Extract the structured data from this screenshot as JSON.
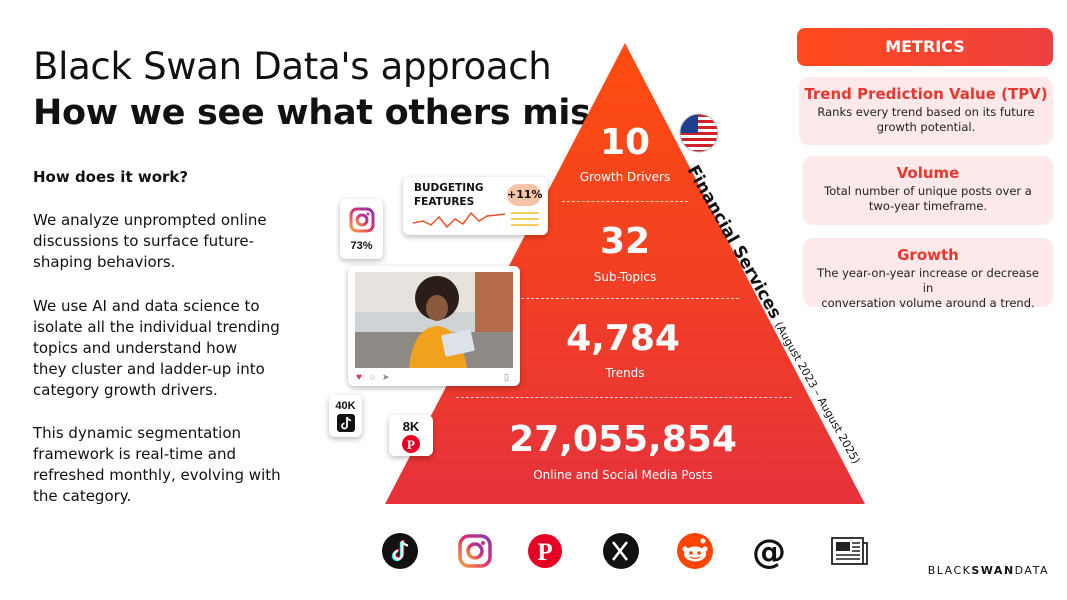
{
  "title": "Black Swan Data's approach",
  "subtitle": "How we see what others miss",
  "question": "How does it work?",
  "paragraphs": [
    [
      "We analyze unprompted online",
      "discussions to surface future-",
      "shaping behaviors."
    ],
    [
      "We use AI and data science to",
      "isolate all the individual trending",
      "topics and understand how",
      "they cluster and ladder-up into",
      "category growth drivers."
    ],
    [
      "This dynamic segmentation",
      "framework is real-time and",
      "refreshed monthly, evolving with",
      "the category."
    ]
  ],
  "pyramid": [
    {
      "value": "10",
      "label": "Growth Drivers"
    },
    {
      "value": "32",
      "label": "Sub-Topics"
    },
    {
      "value": "4,784",
      "label": "Trends"
    },
    {
      "value": "27,055,854",
      "label": "Online and Social Media Posts"
    }
  ],
  "category": {
    "name": "Financial Services",
    "period": "(August 2023 – August 2025)"
  },
  "metrics": {
    "heading": "METRICS",
    "items": [
      {
        "title": "Trend Prediction Value (TPV)",
        "desc_lines": [
          "Ranks every trend based on its future",
          "growth potential."
        ]
      },
      {
        "title": "Volume",
        "desc_lines": [
          "Total number of unique posts over a",
          "two-year timeframe."
        ]
      },
      {
        "title": "Growth",
        "desc_lines": [
          "The year-on-year increase or decrease in",
          "conversation volume around a trend."
        ]
      }
    ]
  },
  "budgeting_card": {
    "title_lines": [
      "BUDGETING",
      "FEATURES"
    ],
    "badge": "+11%"
  },
  "social_stats": {
    "instagram": "73%",
    "tiktok": "40K",
    "pinterest": "8K"
  },
  "platform_icons": [
    "tiktok-icon",
    "instagram-icon",
    "pinterest-icon",
    "x-icon",
    "reddit-icon",
    "threads-icon",
    "news-icon"
  ],
  "brand": {
    "part1": "BLACK",
    "part2": "SWAN",
    "part3": "DATA"
  },
  "colors": {
    "accent": "#ff4a1c",
    "pyramid_top": "#ff4a10",
    "pyramid_bottom": "#e6323a",
    "metric_title": "#e8372f",
    "metric_bg": "#fde9e9"
  }
}
